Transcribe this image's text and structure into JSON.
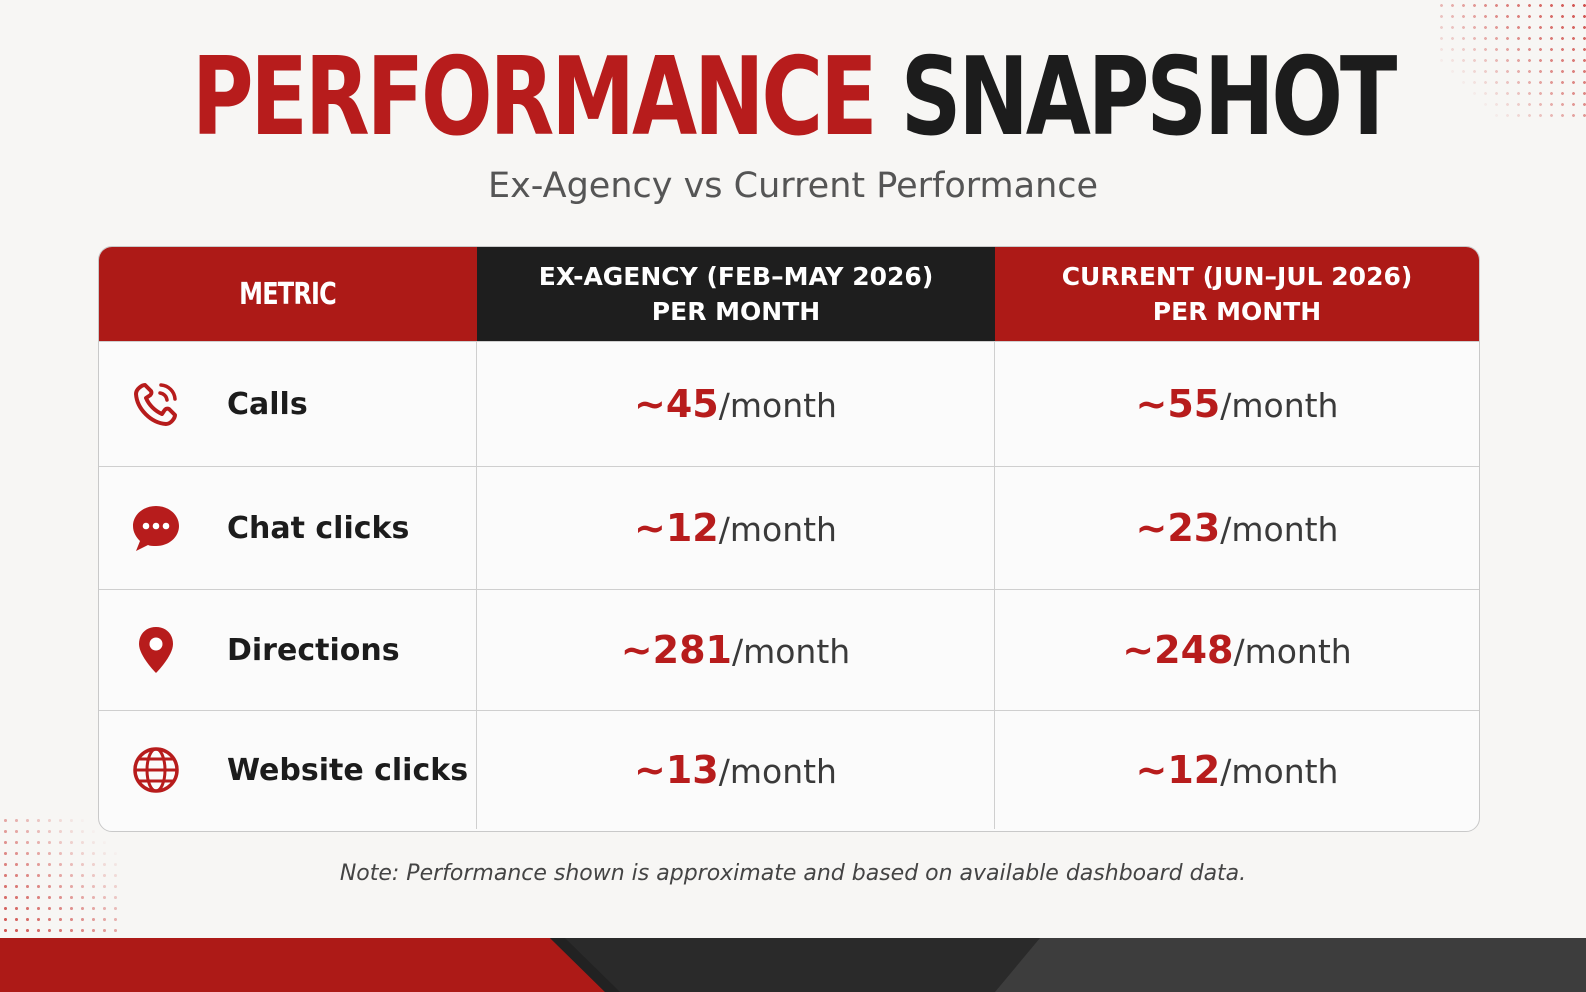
{
  "title": {
    "part1": "PERFORMANCE",
    "part2": "SNAPSHOT"
  },
  "subtitle": "Ex-Agency vs Current Performance",
  "table": {
    "headers": {
      "metric": "METRIC",
      "ex_agency": "EX-AGENCY (FEB–MAY 2026)\nPER MONTH",
      "current": "CURRENT (JUN–JUL 2026)\nPER MONTH"
    },
    "rows": [
      {
        "icon": "phone-icon",
        "label": "Calls",
        "ex": {
          "num": "~45",
          "unit": "/month"
        },
        "cur": {
          "num": "~55",
          "unit": "/month"
        }
      },
      {
        "icon": "chat-icon",
        "label": "Chat clicks",
        "ex": {
          "num": "~12",
          "unit": "/month"
        },
        "cur": {
          "num": "~23",
          "unit": "/month"
        }
      },
      {
        "icon": "location-pin-icon",
        "label": "Directions",
        "ex": {
          "num": "~281",
          "unit": "/month"
        },
        "cur": {
          "num": "~248",
          "unit": "/month"
        }
      },
      {
        "icon": "globe-icon",
        "label": "Website clicks",
        "ex": {
          "num": "~13",
          "unit": "/month"
        },
        "cur": {
          "num": "~12",
          "unit": "/month"
        }
      }
    ]
  },
  "note": "Note: Performance shown is approximate and based on available dashboard data.",
  "colors": {
    "accent_red": "#b71c1c",
    "header_dark": "#1e1e1e",
    "text_dark": "#1c1c1c"
  }
}
